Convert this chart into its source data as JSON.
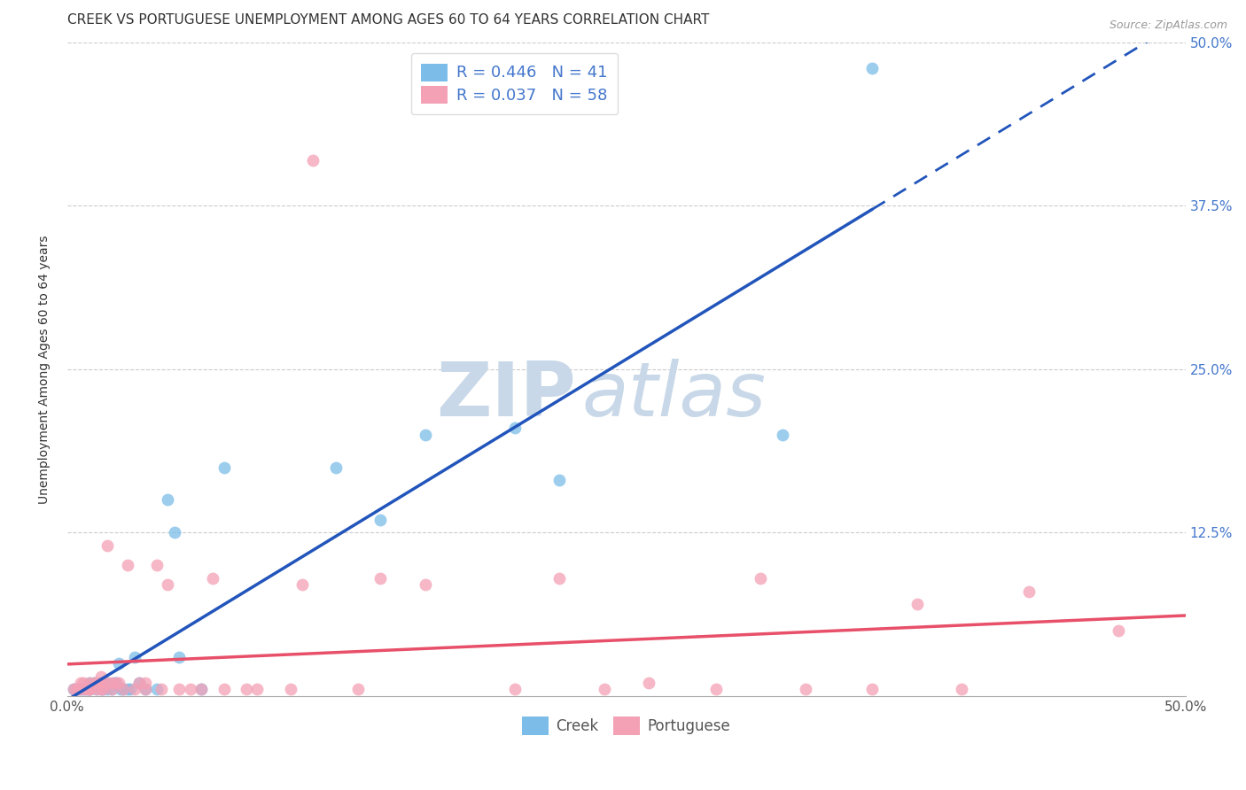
{
  "title": "CREEK VS PORTUGUESE UNEMPLOYMENT AMONG AGES 60 TO 64 YEARS CORRELATION CHART",
  "source": "Source: ZipAtlas.com",
  "ylabel": "Unemployment Among Ages 60 to 64 years",
  "xlim": [
    0,
    0.5
  ],
  "ylim": [
    0,
    0.5
  ],
  "xticks": [
    0.0,
    0.125,
    0.25,
    0.375,
    0.5
  ],
  "yticks": [
    0.0,
    0.125,
    0.25,
    0.375,
    0.5
  ],
  "xticklabels_bottom": [
    "0.0%",
    "",
    "",
    "",
    "50.0%"
  ],
  "yticklabels_right": [
    "",
    "12.5%",
    "25.0%",
    "37.5%",
    "50.0%"
  ],
  "legend_labels": [
    "Creek",
    "Portuguese"
  ],
  "creek_R": "0.446",
  "creek_N": "41",
  "portuguese_R": "0.037",
  "portuguese_N": "58",
  "creek_color": "#7BBDE8",
  "portuguese_color": "#F4A0B5",
  "creek_line_color": "#2255BB",
  "portuguese_line_color": "#E8506A",
  "background_color": "#FFFFFF",
  "title_fontsize": 11,
  "axis_label_fontsize": 10,
  "tick_fontsize": 11,
  "legend_fontsize": 12,
  "creek_x": [
    0.003,
    0.004,
    0.005,
    0.006,
    0.007,
    0.008,
    0.009,
    0.01,
    0.01,
    0.01,
    0.012,
    0.013,
    0.015,
    0.015,
    0.016,
    0.018,
    0.018,
    0.02,
    0.021,
    0.022,
    0.023,
    0.024,
    0.025,
    0.027,
    0.028,
    0.03,
    0.032,
    0.035,
    0.04,
    0.045,
    0.048,
    0.05,
    0.06,
    0.07,
    0.12,
    0.14,
    0.16,
    0.2,
    0.22,
    0.32,
    0.36
  ],
  "creek_y": [
    0.005,
    0.005,
    0.005,
    0.005,
    0.005,
    0.005,
    0.005,
    0.005,
    0.005,
    0.01,
    0.01,
    0.005,
    0.01,
    0.005,
    0.005,
    0.005,
    0.01,
    0.005,
    0.01,
    0.01,
    0.025,
    0.005,
    0.005,
    0.005,
    0.005,
    0.03,
    0.01,
    0.005,
    0.005,
    0.15,
    0.125,
    0.03,
    0.005,
    0.175,
    0.175,
    0.135,
    0.2,
    0.205,
    0.165,
    0.2,
    0.48
  ],
  "portuguese_x": [
    0.003,
    0.004,
    0.005,
    0.006,
    0.006,
    0.007,
    0.008,
    0.009,
    0.01,
    0.01,
    0.01,
    0.012,
    0.013,
    0.014,
    0.015,
    0.015,
    0.015,
    0.016,
    0.018,
    0.018,
    0.02,
    0.02,
    0.022,
    0.023,
    0.025,
    0.027,
    0.03,
    0.032,
    0.035,
    0.035,
    0.04,
    0.042,
    0.045,
    0.05,
    0.055,
    0.06,
    0.065,
    0.07,
    0.08,
    0.085,
    0.1,
    0.105,
    0.11,
    0.13,
    0.14,
    0.16,
    0.2,
    0.22,
    0.24,
    0.26,
    0.29,
    0.31,
    0.33,
    0.36,
    0.38,
    0.4,
    0.43,
    0.47
  ],
  "portuguese_y": [
    0.005,
    0.005,
    0.005,
    0.005,
    0.01,
    0.01,
    0.005,
    0.005,
    0.005,
    0.005,
    0.01,
    0.01,
    0.005,
    0.01,
    0.005,
    0.01,
    0.015,
    0.005,
    0.01,
    0.115,
    0.005,
    0.01,
    0.01,
    0.01,
    0.005,
    0.1,
    0.005,
    0.01,
    0.01,
    0.005,
    0.1,
    0.005,
    0.085,
    0.005,
    0.005,
    0.005,
    0.09,
    0.005,
    0.005,
    0.005,
    0.005,
    0.085,
    0.41,
    0.005,
    0.09,
    0.085,
    0.005,
    0.09,
    0.005,
    0.01,
    0.005,
    0.09,
    0.005,
    0.005,
    0.07,
    0.005,
    0.08,
    0.05
  ],
  "watermark_zip": "ZIP",
  "watermark_atlas": "atlas",
  "watermark_color_zip": "#C8D8E8",
  "watermark_color_atlas": "#C8D8E8",
  "watermark_fontsize": 62
}
